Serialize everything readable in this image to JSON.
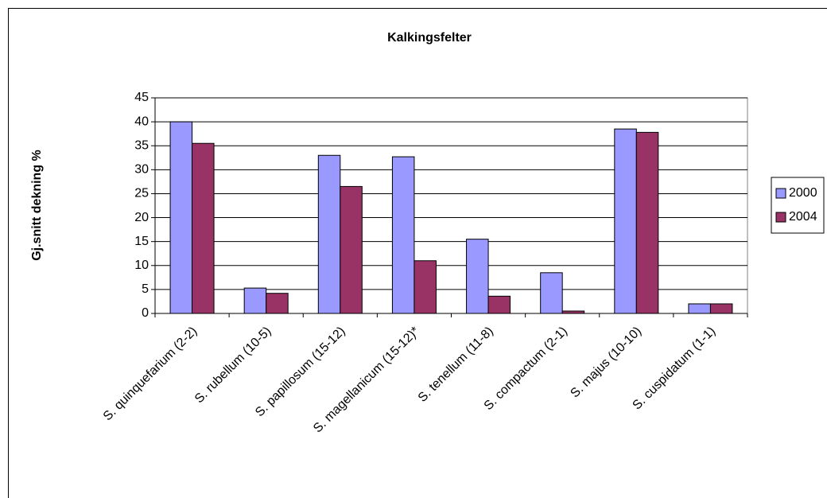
{
  "chart_data": {
    "type": "bar",
    "title": "Kalkingsfelter",
    "y_label": "Gj.snitt dekning %",
    "categories": [
      "S. quinquefarium (2-2)",
      "S. rubellum (10-5)",
      "S. papillosum (15-12)",
      "S. magellanicum (15-12)*",
      "S. tenellum (11-8)",
      "S. compactum (2-1)",
      "S. majus (10-10)",
      "S. cuspidatum (1-1)"
    ],
    "series": [
      {
        "name": "2000",
        "color": "#9999ff",
        "values": [
          40,
          5.3,
          33,
          32.7,
          15.5,
          8.5,
          38.5,
          2
        ]
      },
      {
        "name": "2004",
        "color": "#993366",
        "values": [
          35.5,
          4.2,
          26.5,
          11,
          3.6,
          0.5,
          37.8,
          2
        ]
      }
    ],
    "ylim": [
      0,
      45
    ],
    "yticks": [
      0,
      5,
      10,
      15,
      20,
      25,
      30,
      35,
      40,
      45
    ],
    "grid": true,
    "legend": "right"
  }
}
